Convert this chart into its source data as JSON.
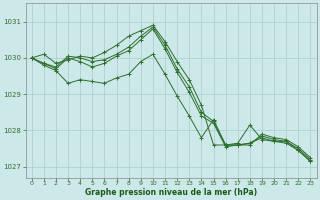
{
  "background_color": "#cce8e8",
  "grid_color": "#aacccc",
  "line_color": "#2d6e2d",
  "marker_color": "#2d6e2d",
  "xlabel": "Graphe pression niveau de la mer (hPa)",
  "xlabel_color": "#1a5c1a",
  "tick_color": "#2d6e2d",
  "ylim": [
    1026.7,
    1031.5
  ],
  "xlim": [
    -0.5,
    23.5
  ],
  "yticks": [
    1027,
    1028,
    1029,
    1030,
    1031
  ],
  "xticks": [
    0,
    1,
    2,
    3,
    4,
    5,
    6,
    7,
    8,
    9,
    10,
    11,
    12,
    13,
    14,
    15,
    16,
    17,
    18,
    19,
    20,
    21,
    22,
    23
  ],
  "series": [
    [
      1030.0,
      1030.1,
      1029.85,
      1029.95,
      1030.05,
      1030.0,
      1030.15,
      1030.35,
      1030.6,
      1030.75,
      1030.9,
      1030.45,
      1029.9,
      1029.4,
      1028.7,
      1027.6,
      1027.6,
      1027.65,
      1028.15,
      1027.75,
      1027.7,
      1027.7,
      1027.45,
      1027.15
    ],
    [
      1030.0,
      1029.85,
      1029.75,
      1030.05,
      1030.0,
      1029.9,
      1029.95,
      1030.1,
      1030.3,
      1030.6,
      1030.85,
      1030.35,
      1029.7,
      1029.2,
      1028.5,
      1028.25,
      1027.6,
      1027.6,
      1027.65,
      1027.8,
      1027.7,
      1027.65,
      1027.45,
      1027.15
    ],
    [
      1030.0,
      1029.85,
      1029.7,
      1030.0,
      1029.9,
      1029.75,
      1029.85,
      1030.05,
      1030.2,
      1030.5,
      1030.8,
      1030.25,
      1029.6,
      1029.05,
      1028.4,
      1028.2,
      1027.55,
      1027.6,
      1027.65,
      1027.85,
      1027.75,
      1027.7,
      1027.5,
      1027.2
    ],
    [
      1030.0,
      1029.8,
      1029.65,
      1029.3,
      1029.4,
      1029.35,
      1029.3,
      1029.45,
      1029.55,
      1029.9,
      1030.1,
      1029.55,
      1028.95,
      1028.4,
      1027.8,
      1028.3,
      1027.6,
      1027.6,
      1027.6,
      1027.9,
      1027.8,
      1027.75,
      1027.55,
      1027.25
    ]
  ]
}
